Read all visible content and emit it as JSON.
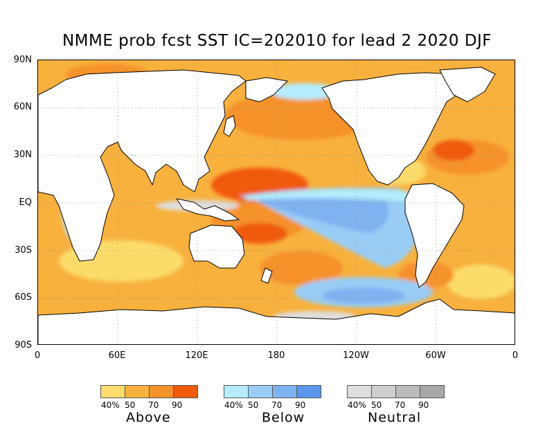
{
  "title": "NMME prob fcst SST IC=202010 for lead 2 2020 DJF",
  "y_axis_labels": [
    "90N",
    "60N",
    "30N",
    "EQ",
    "30S",
    "60S",
    "90S"
  ],
  "x_axis_labels": [
    "0",
    "60E",
    "120E",
    "180",
    "120W",
    "60W",
    "0"
  ],
  "colors": {
    "ocean_light": "#fbd55f",
    "above_40": "#fbdc6b",
    "above_50": "#f8b13d",
    "above_70": "#f5922a",
    "above_90": "#f05a0a",
    "below_40": "#b4ecfb",
    "below_50": "#99cdf6",
    "below_70": "#7fb2f1",
    "below_90": "#5a97ec",
    "neutral_40": "#dedede",
    "neutral_50": "#cfcfcf",
    "neutral_70": "#bcbcbc",
    "neutral_90": "#a9a9a9",
    "land": "#ffffff",
    "grid": "#9a9a9a"
  },
  "legends": [
    {
      "name": "Above",
      "ticks": [
        "40%",
        "50",
        "70",
        "90"
      ]
    },
    {
      "name": "Below",
      "ticks": [
        "40%",
        "50",
        "70",
        "90"
      ]
    },
    {
      "name": "Neutral",
      "ticks": [
        "40%",
        "50",
        "70",
        "90"
      ]
    }
  ]
}
